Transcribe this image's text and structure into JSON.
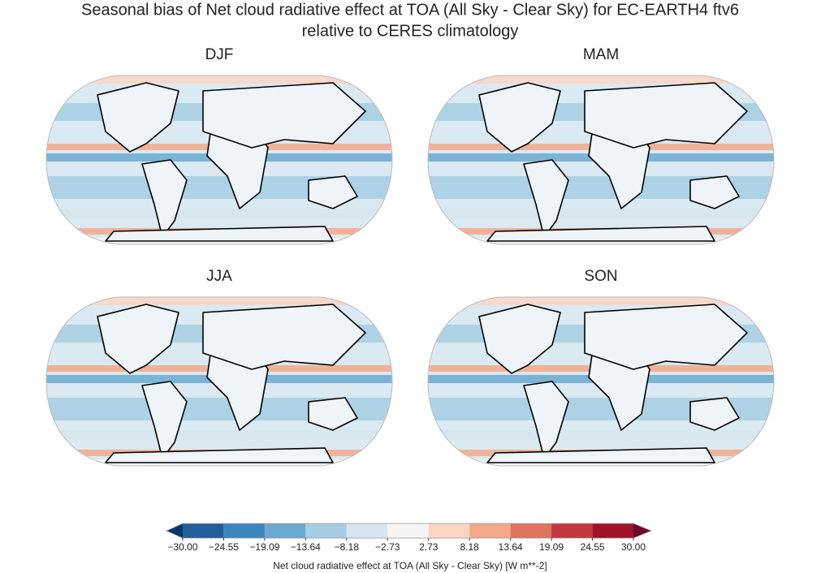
{
  "chart_data": {
    "type": "map-panels",
    "title": [
      "Seasonal bias of Net cloud radiative effect at TOA (All Sky - Clear Sky) for EC-EARTH4 ftv6",
      "relative to CERES climatology"
    ],
    "panels": [
      "DJF",
      "MAM",
      "JJA",
      "SON"
    ],
    "colorbar": {
      "label": "Net cloud radiative effect at TOA (All Sky - Clear Sky) [W m**-2]",
      "ticks": [
        {
          "value": -30,
          "label": "−30.00"
        },
        {
          "value": -24.55,
          "label": "−24.55"
        },
        {
          "value": -19.09,
          "label": "−19.09"
        },
        {
          "value": -13.64,
          "label": "−13.64"
        },
        {
          "value": -8.18,
          "label": "−8.18"
        },
        {
          "value": -2.73,
          "label": "−2.73"
        },
        2.73,
        8.18,
        13.64,
        19.09,
        24.55,
        {
          "value": 30,
          "label": "30.00"
        }
      ],
      "colors": [
        "#215f9d",
        "#3a87c0",
        "#6aa9d1",
        "#a5cde3",
        "#d5e6f0",
        "#f5f4f3",
        "#fbd5c3",
        "#f3a889",
        "#df745c",
        "#c23a3c",
        "#a0132b"
      ],
      "under_color": "#093766",
      "over_color": "#6a0a24"
    }
  }
}
